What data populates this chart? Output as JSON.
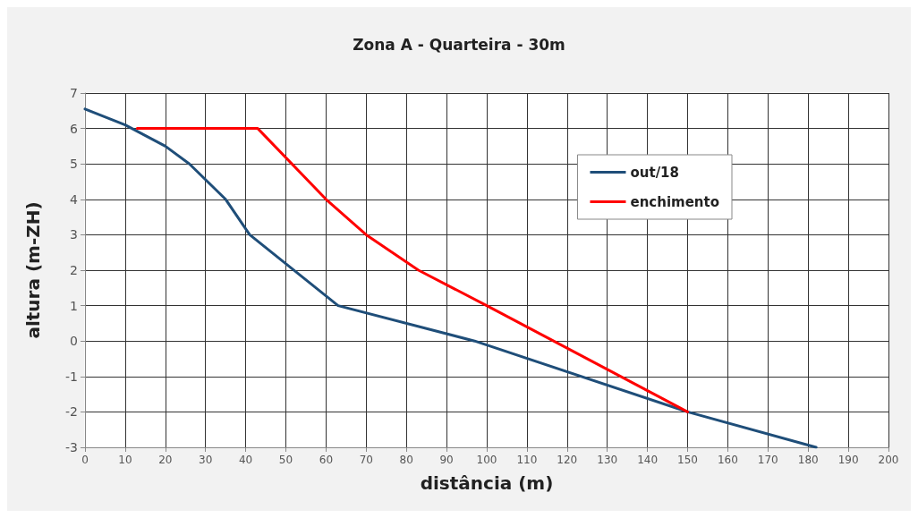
{
  "chart_data": {
    "type": "line",
    "title": "Zona A - Quarteira - 30m",
    "xlabel": "distância (m)",
    "ylabel": "altura (m-ZH)",
    "series": [
      {
        "name": "out/18",
        "color": "#1f4e79",
        "x": [
          0,
          10,
          20,
          26,
          35,
          41,
          63,
          97,
          150,
          182
        ],
        "values": [
          6.55,
          6.1,
          5.5,
          5.0,
          4.0,
          3.0,
          1.0,
          0,
          -2,
          -3
        ]
      },
      {
        "name": "enchimento",
        "color": "#ff0000",
        "x": [
          13,
          43,
          60,
          70,
          83,
          100,
          150
        ],
        "values": [
          6,
          6,
          4.0,
          3.0,
          2.0,
          1.0,
          -2
        ]
      }
    ],
    "xlim": [
      0,
      200
    ],
    "xticks": [
      0,
      10,
      20,
      30,
      40,
      50,
      60,
      70,
      80,
      90,
      100,
      110,
      120,
      130,
      140,
      150,
      160,
      170,
      180,
      190,
      200
    ],
    "ylim": [
      -3,
      7
    ],
    "yticks": [
      -3,
      -2,
      -1,
      0,
      1,
      2,
      3,
      4,
      5,
      6,
      7
    ],
    "grid": true,
    "legend": "top right",
    "marker": "none",
    "line_style": "solid"
  }
}
